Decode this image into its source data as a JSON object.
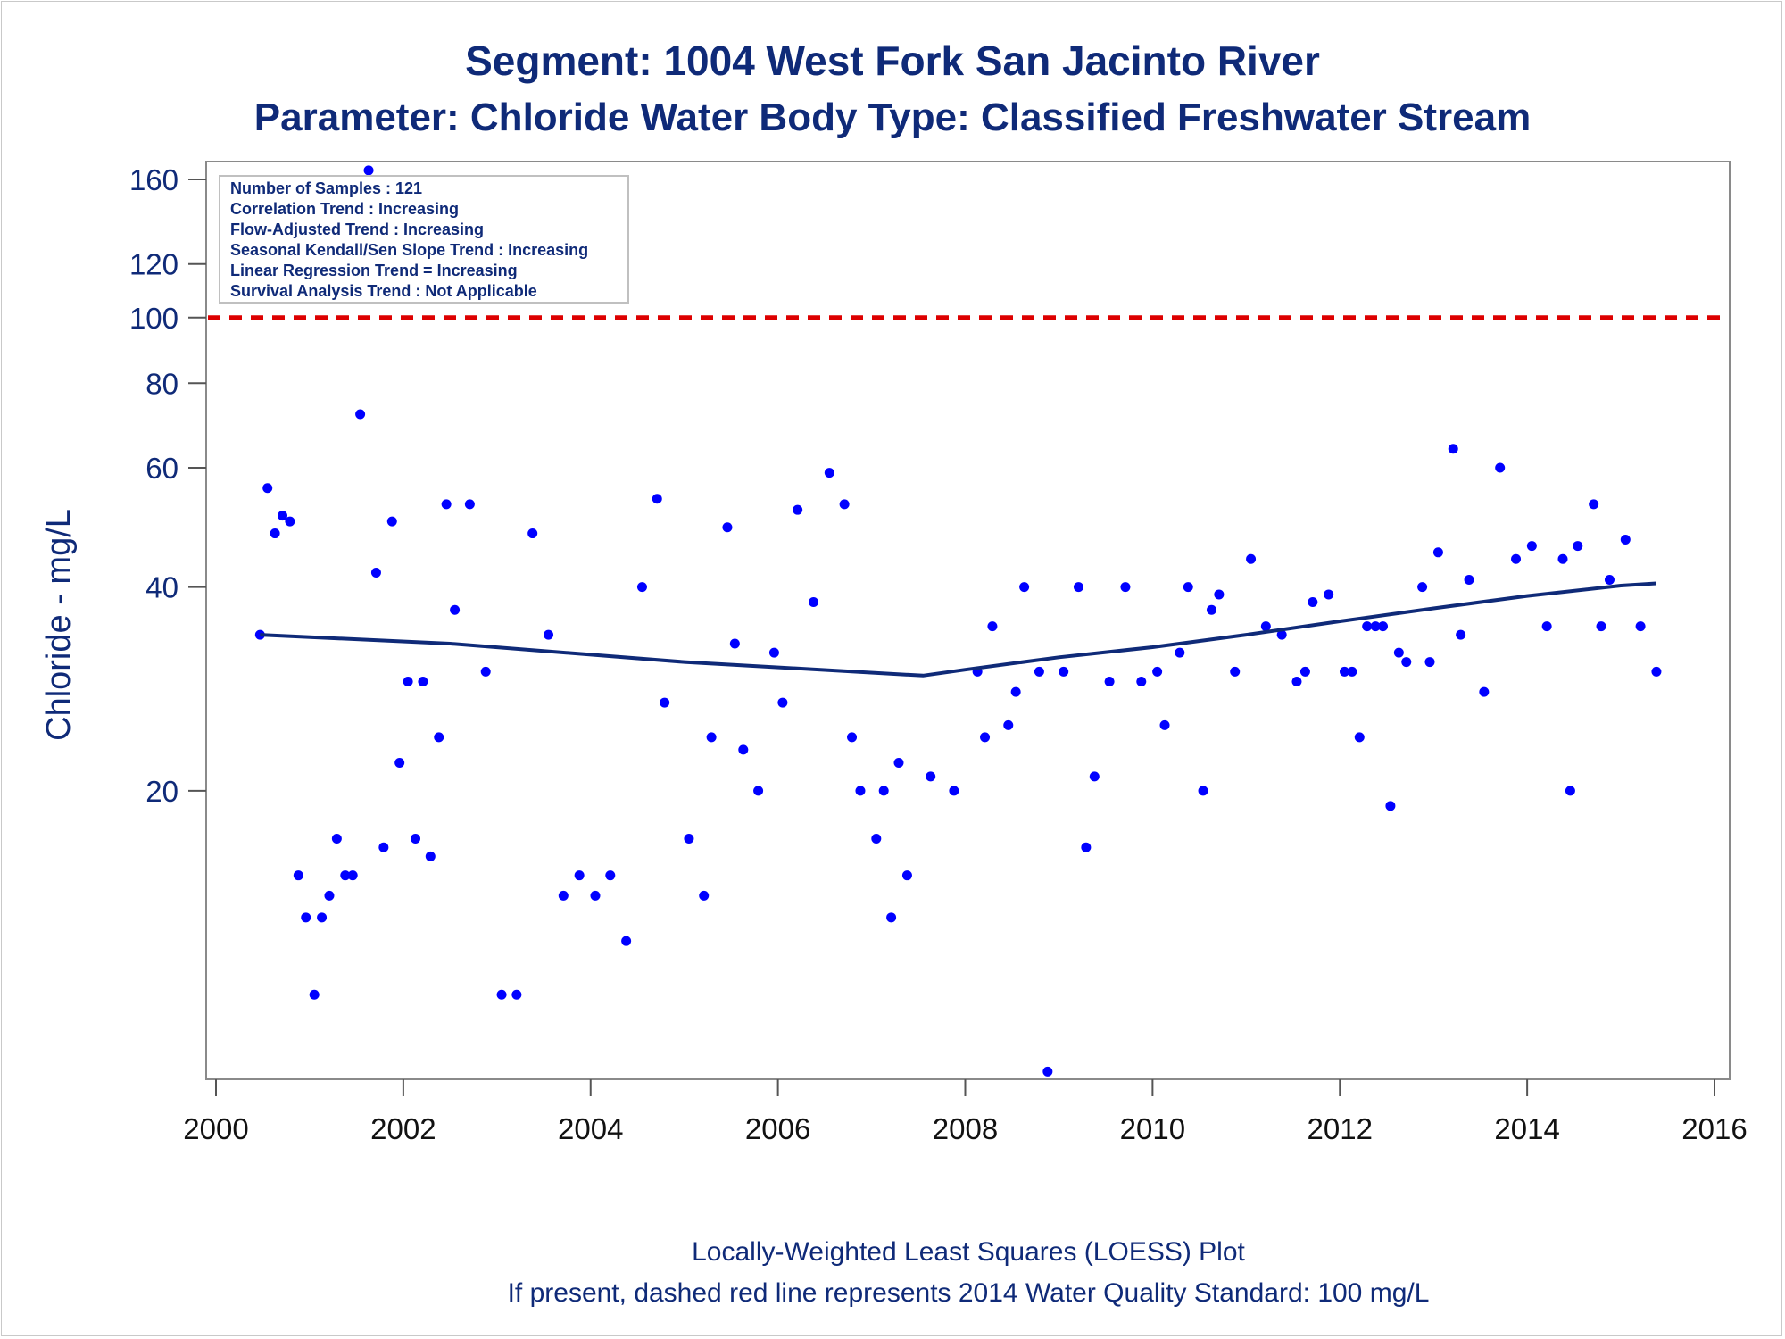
{
  "titles": {
    "line1": "Segment: 1004  West Fork San Jacinto River",
    "line2": "Parameter: Chloride   Water Body Type: Classified Freshwater Stream"
  },
  "stats_box": [
    "Number of Samples : 121",
    "Correlation Trend : Increasing",
    "Flow-Adjusted Trend : Increasing",
    "Seasonal Kendall/Sen Slope Trend : Increasing",
    "Linear Regression Trend = Increasing",
    "Survival Analysis Trend : Not Applicable"
  ],
  "footnotes": {
    "line1": "Locally-Weighted Least Squares (LOESS) Plot",
    "line2": "If present, dashed red line represents 2014 Water Quality Standard: 100    mg/L"
  },
  "colors": {
    "points": "#0000ff",
    "loess": "#0f2a78",
    "standard": "#dd0000",
    "text": "#0f2a78"
  },
  "chart_data": {
    "type": "scatter",
    "title": "Segment: 1004  West Fork San Jacinto River",
    "subtitle": "Parameter: Chloride   Water Body Type: Classified Freshwater Stream",
    "xlabel": "",
    "ylabel": "Chloride - mg/L",
    "yscale": "log",
    "xlim": [
      2000,
      2016
    ],
    "ylim": [
      7.5,
      170
    ],
    "xticks": [
      2000,
      2002,
      2004,
      2006,
      2008,
      2010,
      2012,
      2014,
      2016
    ],
    "yticks": [
      20,
      40,
      60,
      80,
      100,
      120,
      160
    ],
    "grid": false,
    "standard_line": 100,
    "points": [
      [
        2000.47,
        34
      ],
      [
        2000.55,
        56
      ],
      [
        2000.63,
        48
      ],
      [
        2000.71,
        51
      ],
      [
        2000.79,
        50
      ],
      [
        2000.88,
        15
      ],
      [
        2000.96,
        13
      ],
      [
        2001.05,
        10
      ],
      [
        2001.13,
        13
      ],
      [
        2001.21,
        14
      ],
      [
        2001.29,
        17
      ],
      [
        2001.38,
        15
      ],
      [
        2001.46,
        15
      ],
      [
        2001.54,
        72
      ],
      [
        2001.63,
        165
      ],
      [
        2001.71,
        42
      ],
      [
        2001.79,
        16.5
      ],
      [
        2001.88,
        50
      ],
      [
        2001.96,
        22
      ],
      [
        2002.05,
        29
      ],
      [
        2002.13,
        17
      ],
      [
        2002.21,
        29
      ],
      [
        2002.29,
        16
      ],
      [
        2002.38,
        24
      ],
      [
        2002.46,
        53
      ],
      [
        2002.55,
        37
      ],
      [
        2002.71,
        53
      ],
      [
        2002.88,
        30
      ],
      [
        2003.05,
        10
      ],
      [
        2003.21,
        10
      ],
      [
        2003.38,
        48
      ],
      [
        2003.55,
        34
      ],
      [
        2003.71,
        14
      ],
      [
        2003.88,
        15
      ],
      [
        2004.05,
        14
      ],
      [
        2004.21,
        15
      ],
      [
        2004.38,
        12
      ],
      [
        2004.55,
        40
      ],
      [
        2004.71,
        54
      ],
      [
        2004.79,
        27
      ],
      [
        2005.05,
        17
      ],
      [
        2005.21,
        14
      ],
      [
        2005.29,
        24
      ],
      [
        2005.46,
        49
      ],
      [
        2005.54,
        33
      ],
      [
        2005.63,
        23
      ],
      [
        2005.79,
        20
      ],
      [
        2005.96,
        32
      ],
      [
        2006.05,
        27
      ],
      [
        2006.21,
        52
      ],
      [
        2006.38,
        38
      ],
      [
        2006.55,
        59
      ],
      [
        2006.71,
        53
      ],
      [
        2006.79,
        24
      ],
      [
        2006.88,
        20
      ],
      [
        2007.05,
        17
      ],
      [
        2007.13,
        20
      ],
      [
        2007.21,
        13
      ],
      [
        2007.29,
        22
      ],
      [
        2007.38,
        15
      ],
      [
        2007.63,
        21
      ],
      [
        2007.88,
        20
      ],
      [
        2008.13,
        30
      ],
      [
        2008.21,
        24
      ],
      [
        2008.29,
        35
      ],
      [
        2008.46,
        25
      ],
      [
        2008.54,
        28
      ],
      [
        2008.63,
        40
      ],
      [
        2008.79,
        30
      ],
      [
        2008.88,
        7.7
      ],
      [
        2009.05,
        30
      ],
      [
        2009.21,
        40
      ],
      [
        2009.29,
        16.5
      ],
      [
        2009.38,
        21
      ],
      [
        2009.54,
        29
      ],
      [
        2009.71,
        40
      ],
      [
        2009.88,
        29
      ],
      [
        2010.05,
        30
      ],
      [
        2010.13,
        25
      ],
      [
        2010.29,
        32
      ],
      [
        2010.38,
        40
      ],
      [
        2010.54,
        20
      ],
      [
        2010.63,
        37
      ],
      [
        2010.71,
        39
      ],
      [
        2010.88,
        30
      ],
      [
        2011.05,
        44
      ],
      [
        2011.21,
        35
      ],
      [
        2011.38,
        34
      ],
      [
        2011.54,
        29
      ],
      [
        2011.63,
        30
      ],
      [
        2011.71,
        38
      ],
      [
        2011.88,
        39
      ],
      [
        2012.05,
        30
      ],
      [
        2012.13,
        30
      ],
      [
        2012.21,
        24
      ],
      [
        2012.29,
        35
      ],
      [
        2012.38,
        35
      ],
      [
        2012.46,
        35
      ],
      [
        2012.54,
        19
      ],
      [
        2012.63,
        32
      ],
      [
        2012.71,
        31
      ],
      [
        2012.88,
        40
      ],
      [
        2012.96,
        31
      ],
      [
        2013.05,
        45
      ],
      [
        2013.21,
        64
      ],
      [
        2013.29,
        34
      ],
      [
        2013.38,
        41
      ],
      [
        2013.54,
        28
      ],
      [
        2013.71,
        60
      ],
      [
        2013.88,
        44
      ],
      [
        2014.05,
        46
      ],
      [
        2014.21,
        35
      ],
      [
        2014.38,
        44
      ],
      [
        2014.46,
        20
      ],
      [
        2014.54,
        46
      ],
      [
        2014.71,
        53
      ],
      [
        2014.79,
        35
      ],
      [
        2014.88,
        41
      ],
      [
        2015.05,
        47
      ],
      [
        2015.21,
        35
      ],
      [
        2015.38,
        30
      ]
    ],
    "loess": [
      [
        2000.47,
        34
      ],
      [
        2002.5,
        33
      ],
      [
        2005.0,
        31
      ],
      [
        2007.55,
        29.6
      ],
      [
        2008.0,
        30.2
      ],
      [
        2009.0,
        31.5
      ],
      [
        2010.0,
        32.6
      ],
      [
        2011.0,
        34.0
      ],
      [
        2012.0,
        35.6
      ],
      [
        2013.0,
        37.2
      ],
      [
        2014.0,
        38.8
      ],
      [
        2015.0,
        40.2
      ],
      [
        2015.38,
        40.5
      ]
    ]
  }
}
